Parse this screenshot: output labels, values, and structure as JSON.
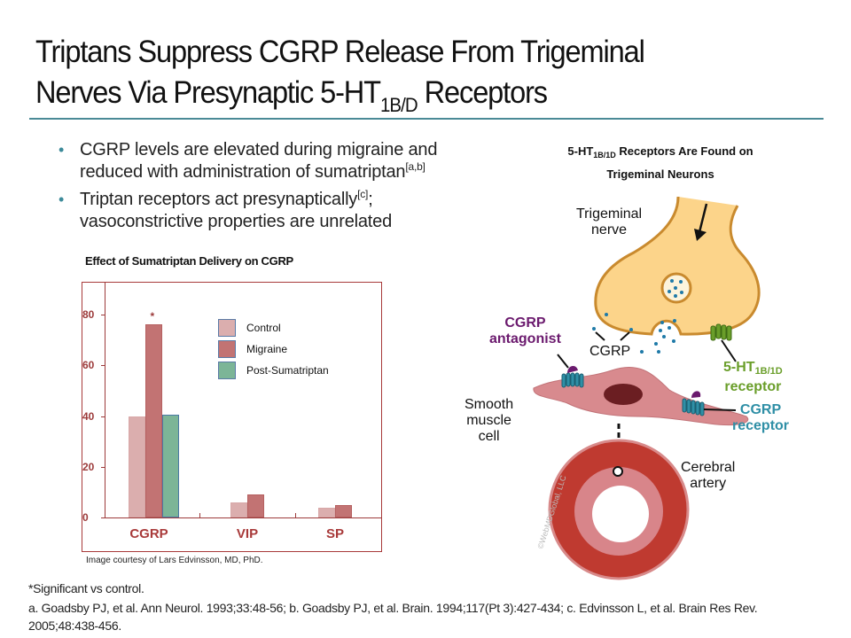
{
  "slide": {
    "title_line1": "Triptans Suppress CGRP Release From Trigeminal",
    "title_line2_prefix": "Nerves Via Presynaptic 5-HT",
    "title_line2_sub": "1B/D",
    "title_line2_suffix": " Receptors"
  },
  "bullets": [
    {
      "text": "CGRP levels are elevated during migraine and reduced with administration of sumatriptan",
      "sup": "[a,b]",
      "after": ""
    },
    {
      "text": "Triptan receptors act presynaptically",
      "sup": "[c]",
      "after": "; vasoconstrictive properties are unrelated"
    }
  ],
  "bullet_glyph": "•",
  "chart_data": {
    "type": "bar",
    "title": "Effect of Sumatriptan Delivery on CGRP",
    "categories": [
      "CGRP",
      "VIP",
      "SP"
    ],
    "series": [
      {
        "name": "Control",
        "values": [
          40,
          6,
          4
        ],
        "color": "#dbaeae"
      },
      {
        "name": "Migraine",
        "values": [
          76,
          9,
          5
        ],
        "color": "#c27373"
      },
      {
        "name": "Post-Sumatriptan",
        "values": [
          40.5,
          null,
          null
        ],
        "color": "#7cb597"
      }
    ],
    "yticks": [
      0,
      20,
      40,
      60,
      80
    ],
    "ylim": [
      0,
      92
    ],
    "xlabel": "",
    "ylabel": "",
    "grid": false,
    "legend_position": "upper-right-inside",
    "annotations": [
      {
        "category": "CGRP",
        "series": "Migraine",
        "text": "*"
      }
    ]
  },
  "chart_credit": "Image courtesy of Lars Edvinsson, MD, PhD.",
  "footnote": "*Significant vs control.",
  "references": "a. Goadsby PJ, et al. Ann Neurol. 1993;33:48-56; b. Goadsby PJ, et al. Brain. 1994;117(Pt 3):427-434; c. Edvinsson L, et al. Brain Res Rev. 2005;48:438-456.",
  "diagram": {
    "title_prefix": "5-HT",
    "title_sub": "1B/1D",
    "title_suffix": " Receptors Are Found on",
    "title_line2": "Trigeminal Neurons",
    "labels": {
      "trigeminal_line1": "Trigeminal",
      "trigeminal_line2": "nerve",
      "antagonist_line1": "CGRP",
      "antagonist_line2": "antagonist",
      "cgrp": "CGRP",
      "receptor_5ht_prefix": "5-HT",
      "receptor_5ht_sub": "1B/1D",
      "receptor_5ht_line2": "receptor",
      "smooth_line1": "Smooth",
      "smooth_line2": "muscle",
      "smooth_line3": "cell",
      "cgrp_receptor_line1": "CGRP",
      "cgrp_receptor_line2": "receptor",
      "artery_line1": "Cerebral",
      "artery_line2": "artery",
      "watermark": "©WebMDGlobal, LLC"
    },
    "colors": {
      "neuron_fill": "#fcd48a",
      "neuron_stroke": "#c98a2e",
      "cgrp_dots": "#1f7aa8",
      "antagonist": "#6b1a6e",
      "receptor_5ht": "#6a9e2a",
      "cgrp_receptor": "#2f8fa6",
      "muscle_cell": "#d88a8e",
      "nucleus": "#6b1e22",
      "artery_outer": "#bf3a30",
      "artery_inner": "#d8858a"
    }
  }
}
